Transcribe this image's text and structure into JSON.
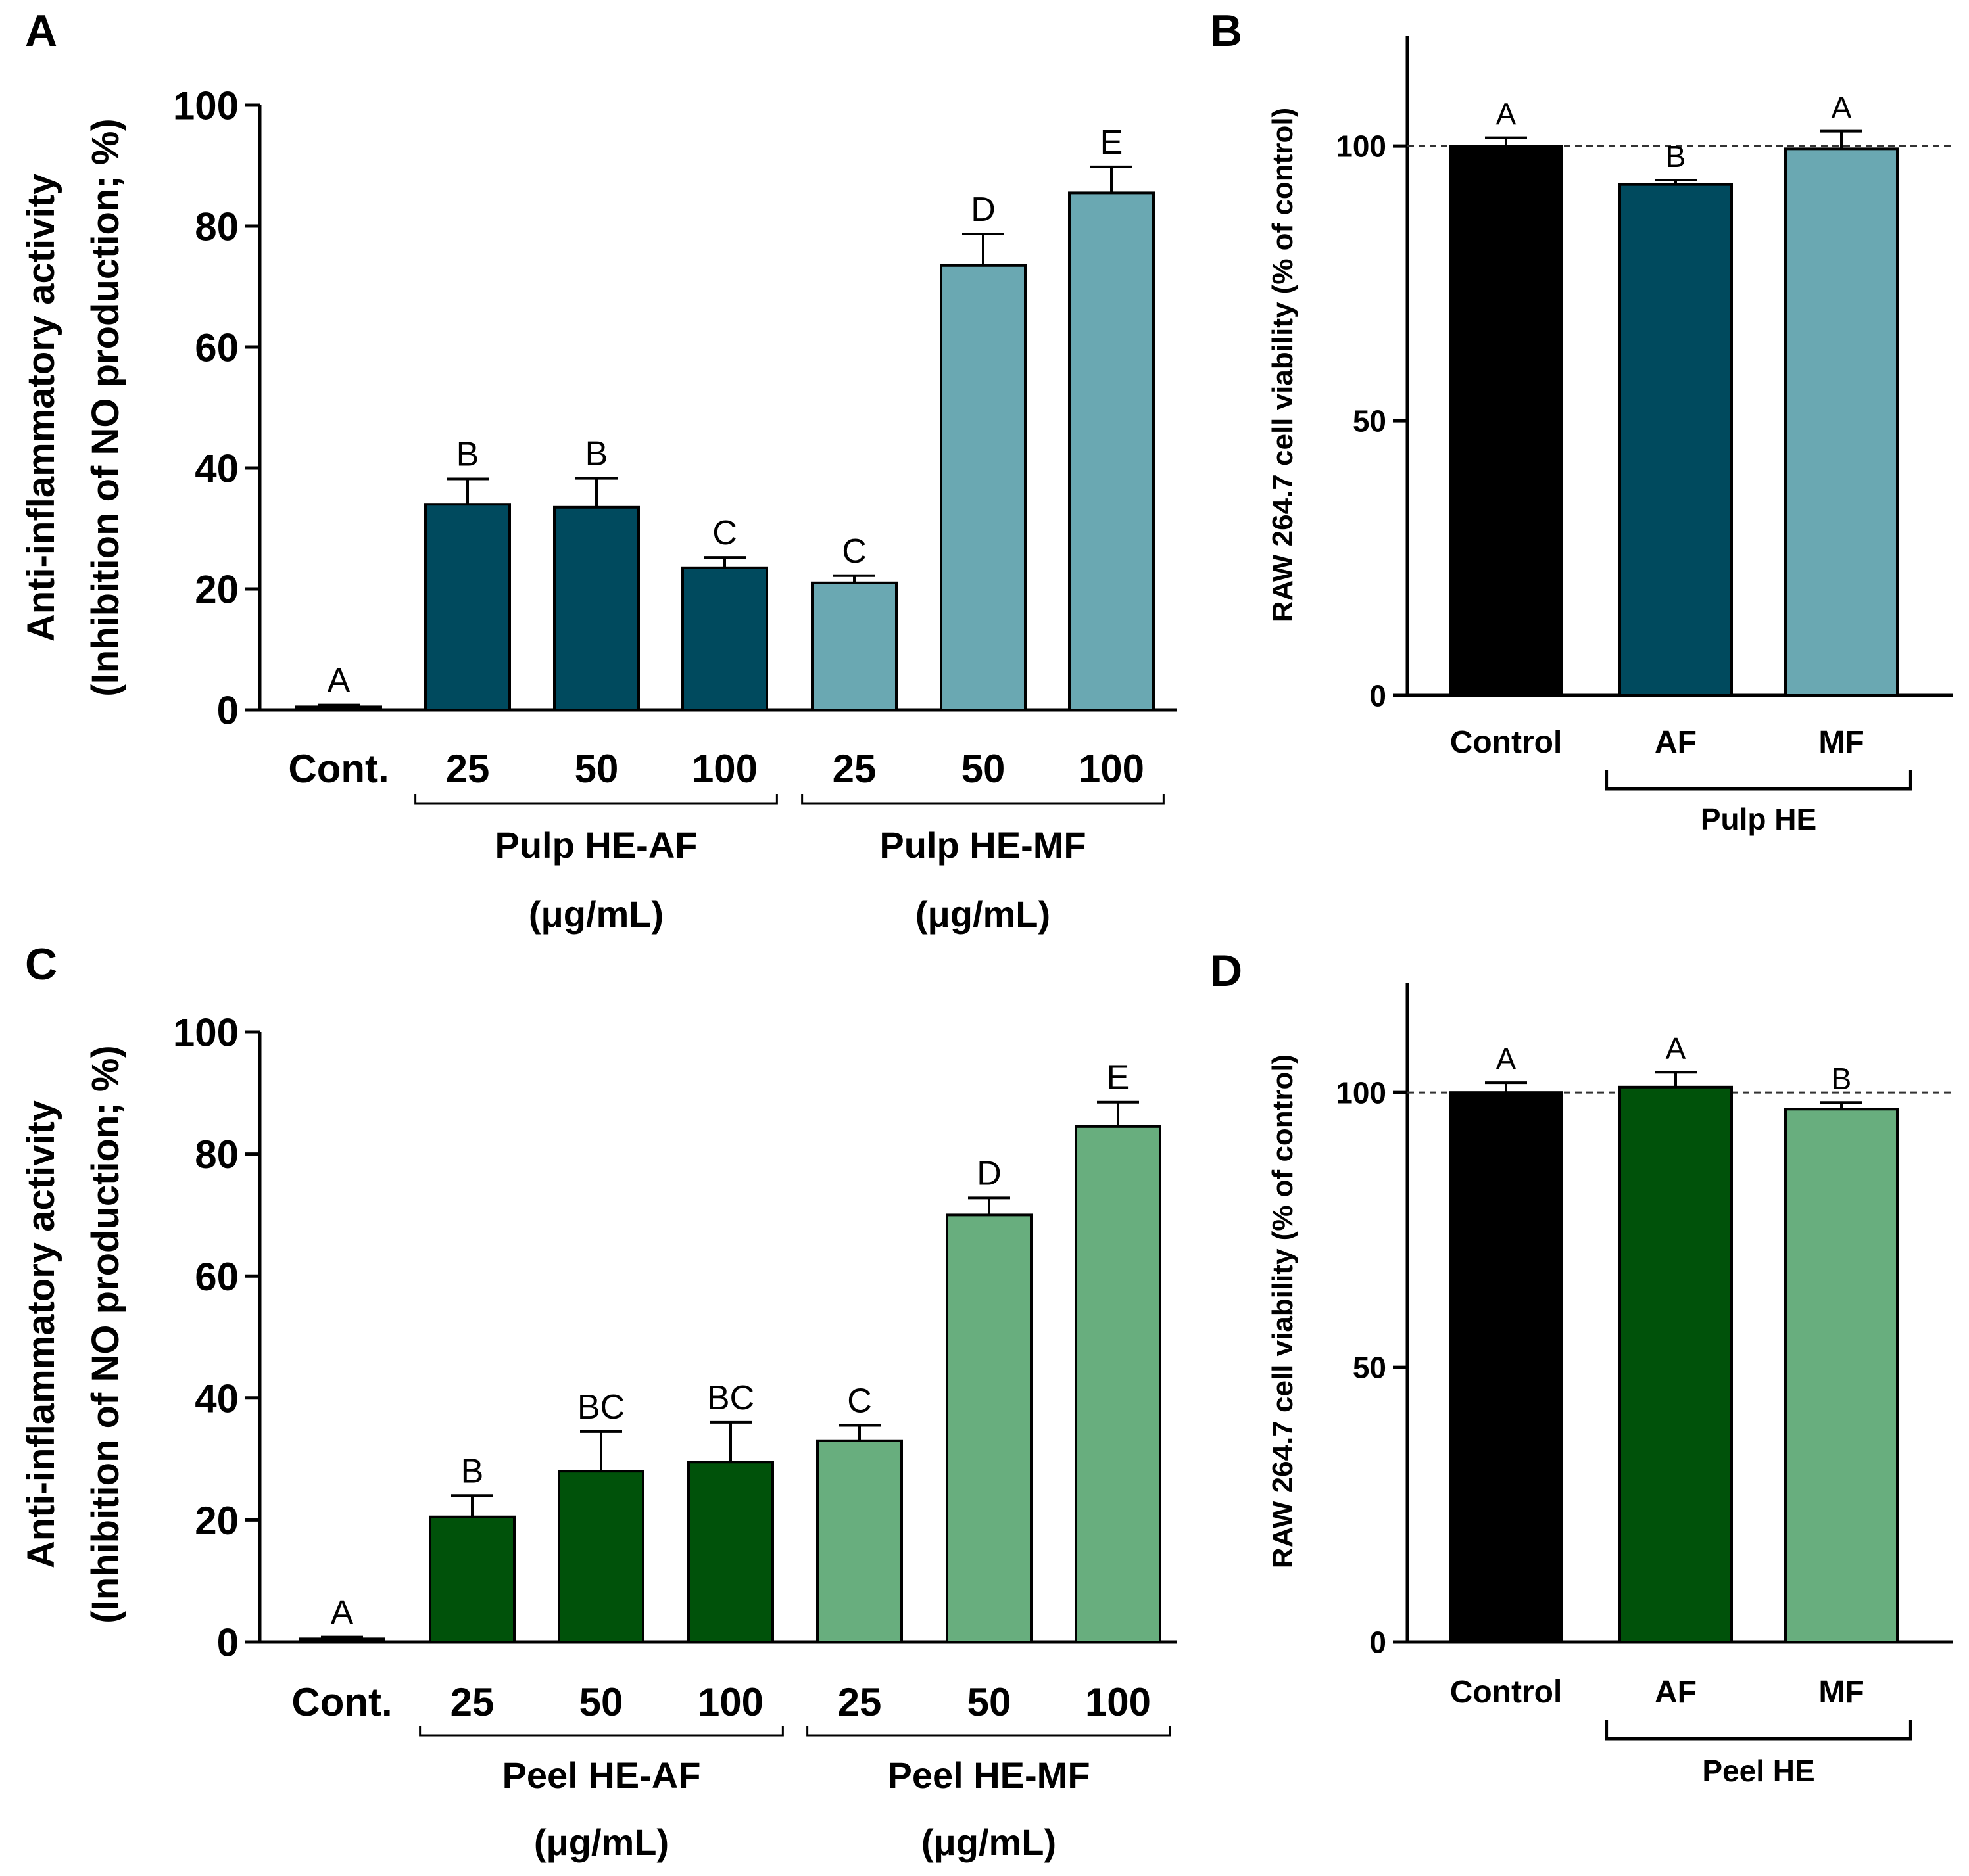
{
  "colors": {
    "pulp_af": "#004a5e",
    "pulp_mf": "#6aa8b2",
    "peel_af": "#00520a",
    "peel_mf": "#68ae7e",
    "control": "#000000",
    "axis": "#000000"
  },
  "chart_data": [
    {
      "panel": "A",
      "type": "bar",
      "ylabel_line1": "Anti-inflammatory activity",
      "ylabel_line2": "(Inhibition of NO production; %)",
      "ylim": [
        0,
        100
      ],
      "yticks": [
        "0",
        "20",
        "40",
        "60",
        "80",
        "100"
      ],
      "categories": [
        "Cont.",
        "25",
        "50",
        "100",
        "25",
        "50",
        "100"
      ],
      "values": [
        0.5,
        34,
        33.5,
        23.5,
        21,
        73.5,
        85.5
      ],
      "errors": [
        0.3,
        4.2,
        4.8,
        1.7,
        1.2,
        5.2,
        4.3
      ],
      "letters": [
        "A",
        "B",
        "B",
        "C",
        "C",
        "D",
        "E"
      ],
      "bar_color_keys": [
        "control",
        "pulp_af",
        "pulp_af",
        "pulp_af",
        "pulp_mf",
        "pulp_mf",
        "pulp_mf"
      ],
      "groups": [
        {
          "line1": "Pulp HE-AF",
          "line2": "(μg/mL)",
          "from": 1,
          "to": 3
        },
        {
          "line1": "Pulp HE-MF",
          "line2": "(μg/mL)",
          "from": 4,
          "to": 6
        }
      ]
    },
    {
      "panel": "B",
      "type": "bar",
      "ylabel": "RAW 264.7 cell viability (% of control)",
      "ylim": [
        0,
        120
      ],
      "yticks": [
        "0",
        "50",
        "100"
      ],
      "reference_line": 100,
      "categories": [
        "Control",
        "AF",
        "MF"
      ],
      "values": [
        100,
        93,
        99.5
      ],
      "errors": [
        1.5,
        0.8,
        3.2
      ],
      "letters": [
        "A",
        "B",
        "A"
      ],
      "bar_color_keys": [
        "control",
        "pulp_af",
        "pulp_mf"
      ],
      "groups": [
        {
          "line1": "Pulp HE",
          "from": 1,
          "to": 2
        }
      ]
    },
    {
      "panel": "C",
      "type": "bar",
      "ylabel_line1": "Anti-inflammatory activity",
      "ylabel_line2": "(Inhibition of NO production; %)",
      "ylim": [
        0,
        100
      ],
      "yticks": [
        "0",
        "20",
        "40",
        "60",
        "80",
        "100"
      ],
      "categories": [
        "Cont.",
        "25",
        "50",
        "100",
        "25",
        "50",
        "100"
      ],
      "values": [
        0.5,
        20.5,
        28,
        29.5,
        33,
        70,
        84.5
      ],
      "errors": [
        0.3,
        3.5,
        6.5,
        6.5,
        2.5,
        2.8,
        4
      ],
      "letters": [
        "A",
        "B",
        "BC",
        "BC",
        "C",
        "D",
        "E"
      ],
      "bar_color_keys": [
        "control",
        "peel_af",
        "peel_af",
        "peel_af",
        "peel_mf",
        "peel_mf",
        "peel_mf"
      ],
      "groups": [
        {
          "line1": "Peel HE-AF",
          "line2": "(μg/mL)",
          "from": 1,
          "to": 3
        },
        {
          "line1": "Peel HE-MF",
          "line2": "(μg/mL)",
          "from": 4,
          "to": 6
        }
      ]
    },
    {
      "panel": "D",
      "type": "bar",
      "ylabel": "RAW 264.7 cell viability (% of control)",
      "ylim": [
        0,
        120
      ],
      "yticks": [
        "0",
        "50",
        "100"
      ],
      "reference_line": 100,
      "categories": [
        "Control",
        "AF",
        "MF"
      ],
      "values": [
        100,
        101,
        97
      ],
      "errors": [
        1.8,
        2.7,
        1.2
      ],
      "letters": [
        "A",
        "A",
        "B"
      ],
      "bar_color_keys": [
        "control",
        "peel_af",
        "peel_mf"
      ],
      "groups": [
        {
          "line1": "Peel HE",
          "from": 1,
          "to": 2
        }
      ]
    }
  ]
}
